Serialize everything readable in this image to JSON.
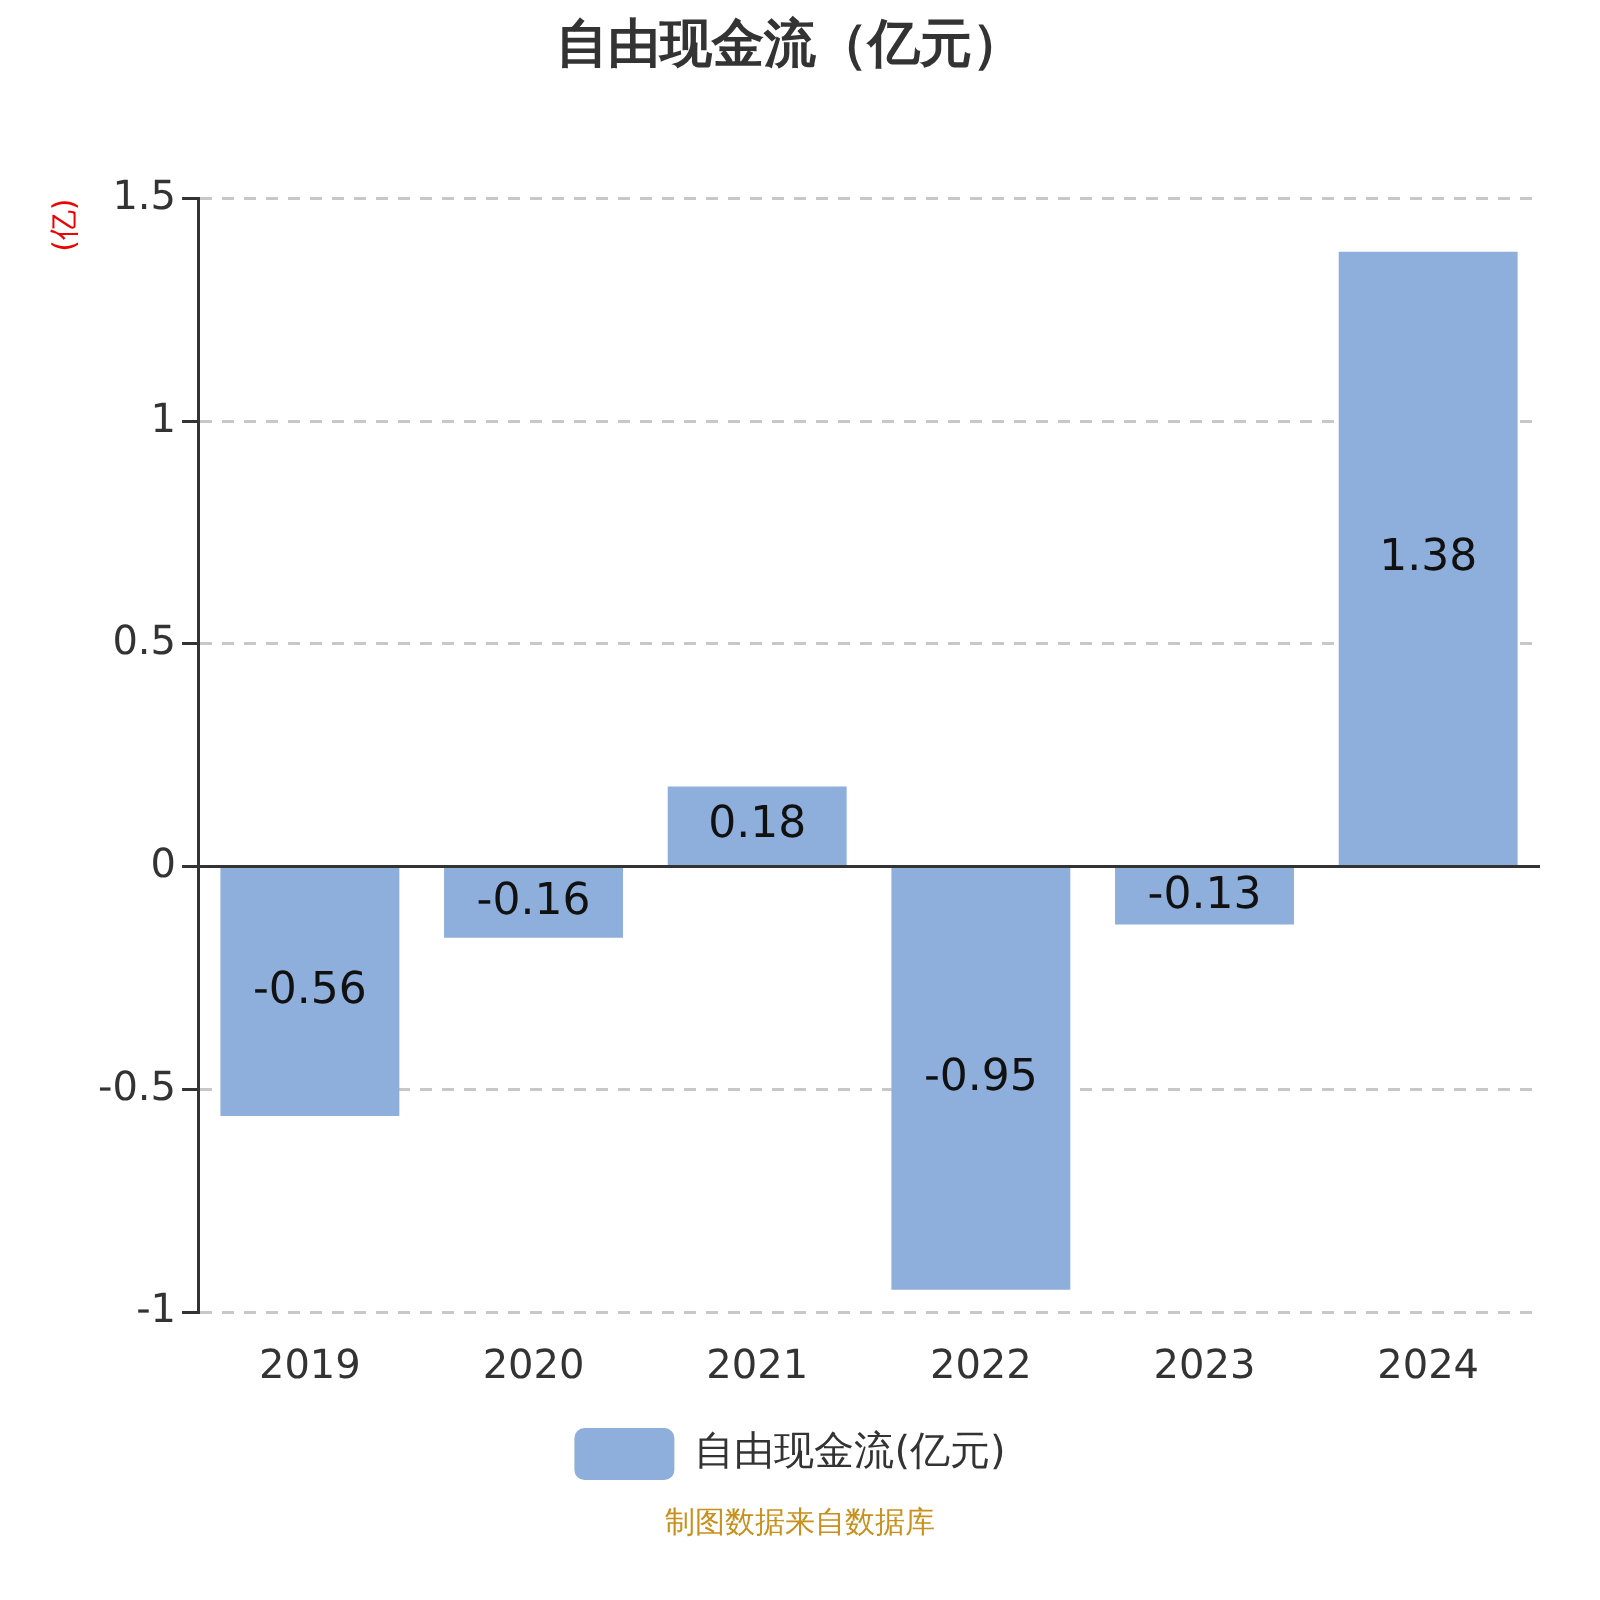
{
  "chart_data": {
    "type": "bar",
    "title": "自由现金流（亿元）",
    "ylabel": "(亿)",
    "categories": [
      "2019",
      "2020",
      "2021",
      "2022",
      "2023",
      "2024"
    ],
    "series": [
      {
        "name": "自由现金流(亿元)",
        "color": "#8eaedb",
        "values": [
          -0.56,
          -0.16,
          0.18,
          -0.95,
          -0.13,
          1.38
        ]
      }
    ],
    "ylim": [
      -1,
      1.5
    ],
    "yticks": [
      -1,
      -0.5,
      0,
      0.5,
      1,
      1.5
    ],
    "grid": "y",
    "legend": "bottom",
    "data_labels": true,
    "annotations": [
      "制图数据来自数据库"
    ]
  }
}
